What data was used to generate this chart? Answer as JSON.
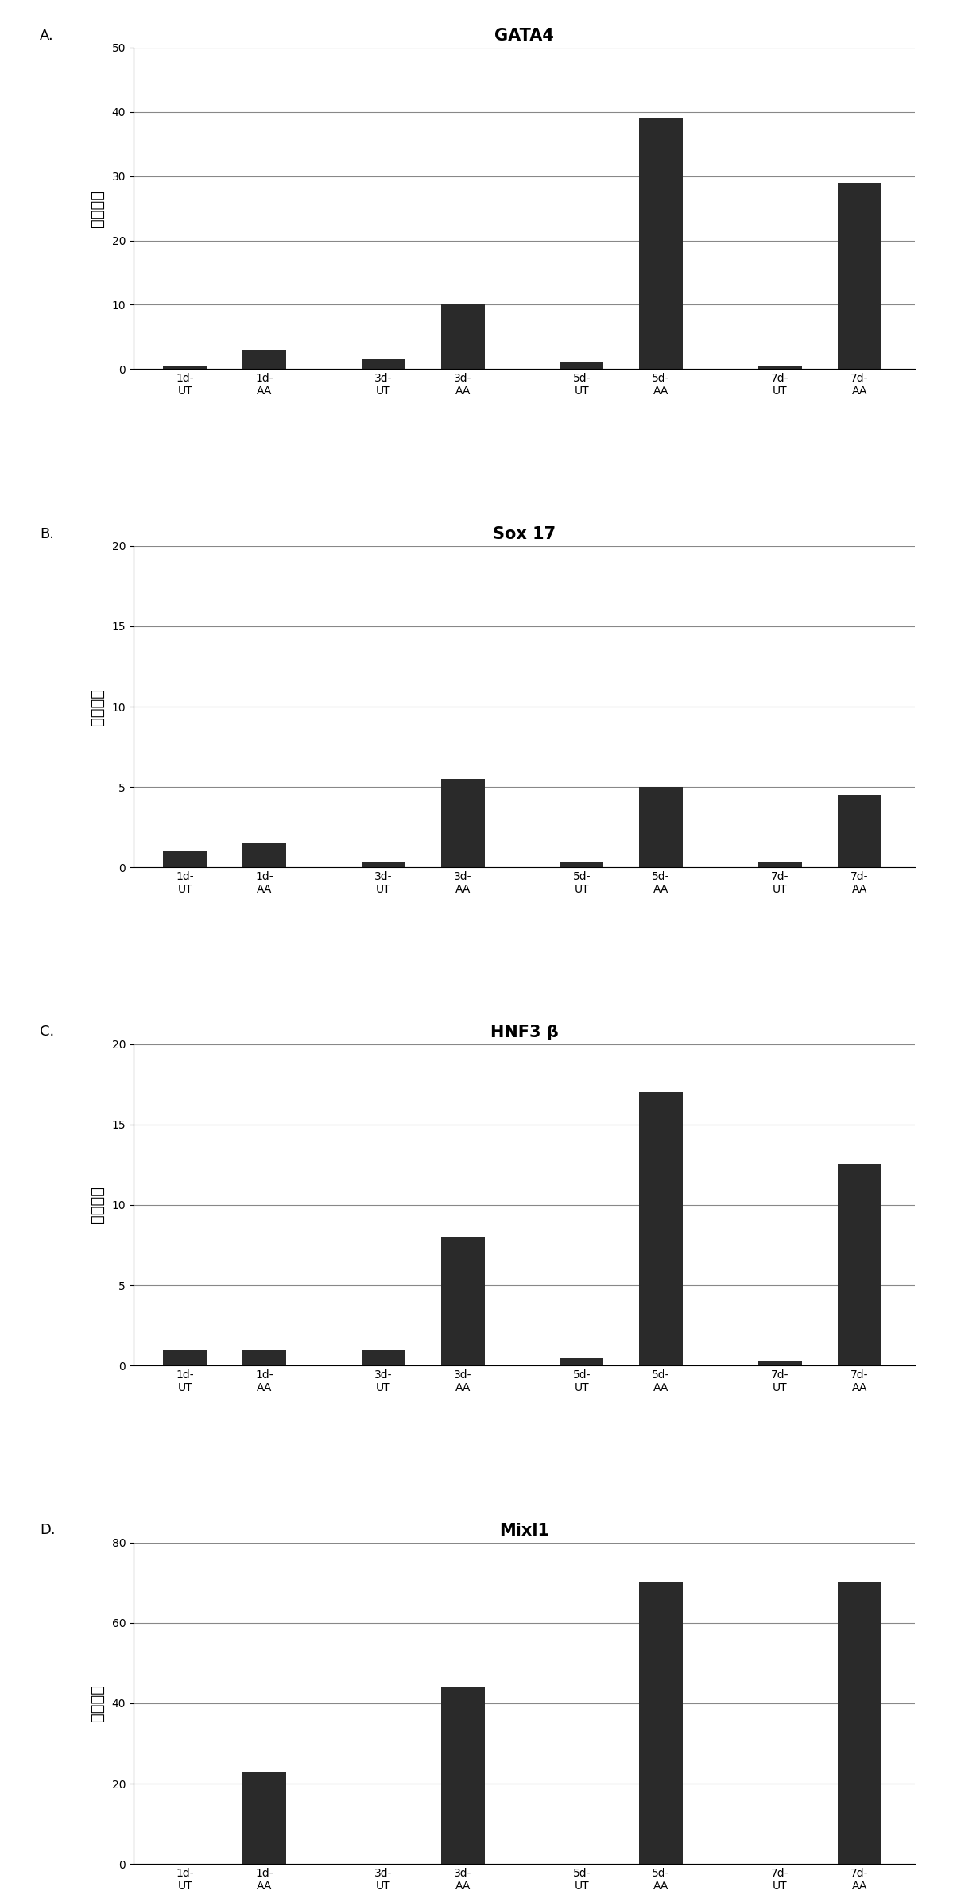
{
  "panels": [
    {
      "label": "A.",
      "title": "GATA4",
      "values": [
        0.5,
        3.0,
        1.5,
        10.0,
        1.0,
        39.0,
        0.5,
        29.0
      ],
      "ylim": [
        0,
        50
      ],
      "yticks": [
        0,
        10,
        20,
        30,
        40,
        50
      ],
      "ylabel": "增加倍数"
    },
    {
      "label": "B.",
      "title": "Sox 17",
      "values": [
        1.0,
        1.5,
        0.3,
        5.5,
        0.3,
        5.0,
        0.3,
        4.5
      ],
      "ylim": [
        0,
        20
      ],
      "yticks": [
        0,
        5,
        10,
        15,
        20
      ],
      "ylabel": "增加倍数"
    },
    {
      "label": "C.",
      "title": "HNF3 β",
      "values": [
        1.0,
        1.0,
        1.0,
        8.0,
        0.5,
        17.0,
        0.3,
        12.5
      ],
      "ylim": [
        0,
        20
      ],
      "yticks": [
        0,
        5,
        10,
        15,
        20
      ],
      "ylabel": "增加倍数"
    },
    {
      "label": "D.",
      "title": "Mixl1",
      "values": [
        0.0,
        23.0,
        0.0,
        44.0,
        0.0,
        70.0,
        0.0,
        70.0
      ],
      "ylim": [
        0,
        80
      ],
      "yticks": [
        0,
        20,
        40,
        60,
        80
      ],
      "ylabel": "增加倍数"
    }
  ],
  "bar_color": "#2a2a2a",
  "bar_width": 0.55,
  "tick_labels_line1": [
    "1d-",
    "1d-",
    "3d-",
    "3d-",
    "5d-",
    "5d-",
    "7d-",
    "7d-"
  ],
  "tick_labels_line2": [
    "UT",
    "AA",
    "UT",
    "AA",
    "UT",
    "AA",
    "UT",
    "AA"
  ],
  "background_color": "#ffffff",
  "title_fontsize": 15,
  "label_fontsize": 13,
  "tick_fontsize": 10,
  "ylabel_fontsize": 14
}
